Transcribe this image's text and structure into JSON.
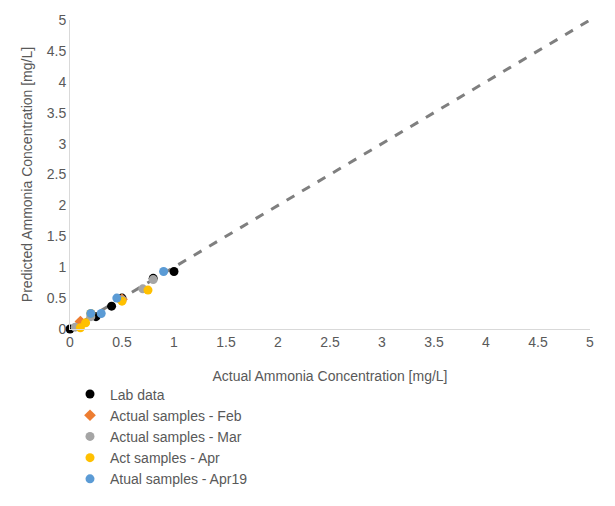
{
  "chart_data": {
    "type": "scatter",
    "x_label": "Actual Ammonia Concentration [mg/L]",
    "y_label": "Predicted Ammonia Concentration [mg/L]",
    "xlim": [
      0,
      5
    ],
    "ylim": [
      0,
      5
    ],
    "xticks": [
      0,
      0.5,
      1,
      1.5,
      2,
      2.5,
      3,
      3.5,
      4,
      4.5,
      5
    ],
    "yticks": [
      0,
      0.5,
      1,
      1.5,
      2,
      2.5,
      3,
      3.5,
      4,
      4.5,
      5
    ],
    "grid": false,
    "legend": "bottom",
    "fit_line": {
      "x": [
        0,
        5
      ],
      "values": [
        0,
        5
      ],
      "color": "#7f7f7f",
      "line_style": "dash"
    },
    "series": [
      {
        "name": "Lab data",
        "color": "#000000",
        "marker": "circle",
        "x": [
          0,
          0.1,
          0.25,
          0.4,
          0.5,
          0.8,
          1.0
        ],
        "values": [
          0,
          0.1,
          0.2,
          0.37,
          0.5,
          0.82,
          0.93
        ]
      },
      {
        "name": "Actual samples - Feb",
        "color": "#ed7d31",
        "marker": "diamond",
        "x": [
          0.1,
          0.5
        ],
        "values": [
          0.12,
          0.48
        ]
      },
      {
        "name": "Actual samples - Mar",
        "color": "#a5a5a5",
        "marker": "circle",
        "x": [
          0.05,
          0.2,
          0.5,
          0.7,
          0.8
        ],
        "values": [
          0.03,
          0.2,
          0.47,
          0.65,
          0.8
        ]
      },
      {
        "name": "Act samples - Apr",
        "color": "#ffc000",
        "marker": "circle",
        "x": [
          0.1,
          0.15,
          0.2,
          0.5,
          0.75
        ],
        "values": [
          0.02,
          0.1,
          0.25,
          0.45,
          0.63
        ]
      },
      {
        "name": "Atual samples - Apr19",
        "color": "#5b9bd5",
        "marker": "circle",
        "x": [
          0.2,
          0.3,
          0.45,
          0.9
        ],
        "values": [
          0.25,
          0.25,
          0.5,
          0.93
        ]
      }
    ]
  }
}
